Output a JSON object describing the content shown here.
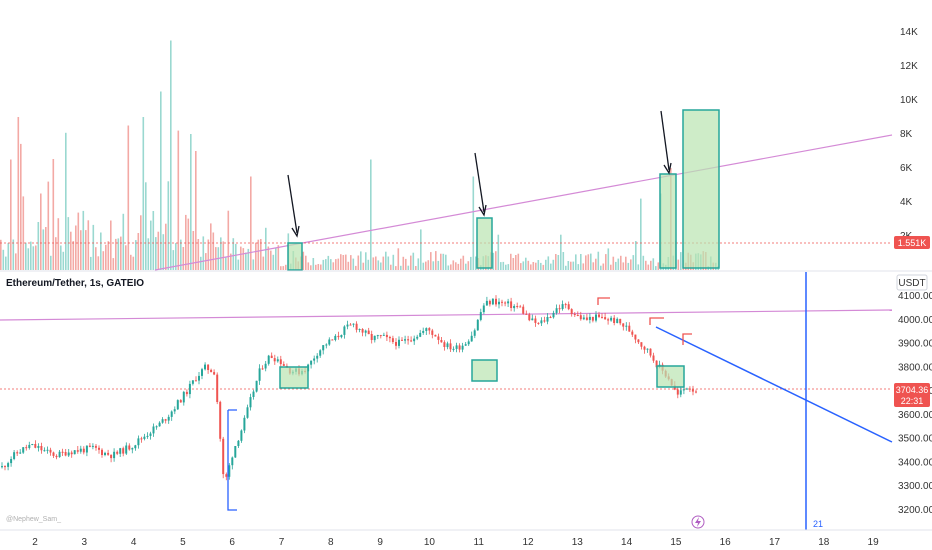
{
  "chart_data": [
    {
      "type": "bar",
      "title": "",
      "ylabel": "",
      "yticks": [
        "2K",
        "4K",
        "6K",
        "8K",
        "10K",
        "12K",
        "14K"
      ],
      "ylim": [
        0,
        15000
      ],
      "last_value_label": "1.551K",
      "colors": {
        "up": "#9ad8d0",
        "down": "#f3a9a5",
        "trendline": "#d48ad6",
        "highlight_fill": "#b9e4b0",
        "highlight_stroke": "#26a69a"
      }
    },
    {
      "type": "candlestick",
      "title": "Ethereum/Tether, 1s, GATEIO",
      "currency": "USDT",
      "yticks": [
        "3200.00",
        "3300.00",
        "3400.00",
        "3500.00",
        "3600.00",
        "3700.00",
        "3800.00",
        "3900.00",
        "4000.00",
        "4100.00"
      ],
      "ylim": [
        3180,
        4120
      ],
      "xticks": [
        "2",
        "3",
        "4",
        "5",
        "6",
        "7",
        "8",
        "9",
        "10",
        "11",
        "12",
        "13",
        "14",
        "15",
        "16",
        "17",
        "18",
        "19"
      ],
      "last_price": "3704.36",
      "countdown": "22:31",
      "vertical_marker_label": "21",
      "watermark": "@Nephew_Sam_",
      "close_series": [
        3380,
        3420,
        3450,
        3470,
        3460,
        3440,
        3430,
        3445,
        3450,
        3455,
        3460,
        3440,
        3430,
        3450,
        3470,
        3500,
        3530,
        3560,
        3600,
        3650,
        3700,
        3760,
        3800,
        3780,
        3300,
        3450,
        3550,
        3680,
        3800,
        3850,
        3830,
        3790,
        3780,
        3800,
        3860,
        3900,
        3920,
        3960,
        3980,
        3950,
        3920,
        3930,
        3910,
        3900,
        3920,
        3940,
        3960,
        3930,
        3890,
        3880,
        3900,
        3950,
        4060,
        4080,
        4070,
        4060,
        4050,
        4000,
        3980,
        4010,
        4050,
        4060,
        4020,
        4000,
        4010,
        4005,
        4000,
        3980,
        3950,
        3900,
        3860,
        3800,
        3760,
        3680,
        3720,
        3704
      ],
      "colors": {
        "up": "#26a69a",
        "down": "#ef5350",
        "trendline_pink": "#d48ad6",
        "trendline_blue": "#2962ff",
        "price_tag": "#ef5350"
      }
    }
  ]
}
